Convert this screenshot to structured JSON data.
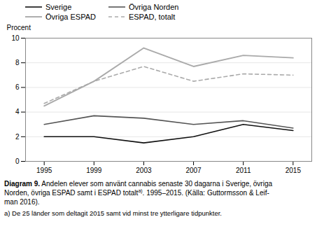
{
  "chart_data": {
    "type": "line",
    "x": [
      1995,
      1999,
      2003,
      2007,
      2011,
      2015
    ],
    "series": [
      {
        "name": "Övriga ESPAD",
        "color": "#aaaaaa",
        "line_style": "solid",
        "values": [
          4.5,
          6.5,
          9.2,
          7.7,
          8.6,
          8.4
        ]
      },
      {
        "name": "ESPAD, totalt",
        "color": "#aaaaaa",
        "line_style": "dashed",
        "values": [
          4.7,
          6.5,
          7.7,
          6.5,
          7.1,
          7.0
        ]
      },
      {
        "name": "Övriga Norden",
        "color": "#555555",
        "line_style": "solid",
        "values": [
          3.0,
          3.7,
          3.5,
          3.0,
          3.3,
          2.7
        ]
      },
      {
        "name": "Sverige",
        "color": "#111111",
        "line_style": "solid",
        "values": [
          2.0,
          2.0,
          1.5,
          2.0,
          3.0,
          2.5
        ]
      }
    ],
    "legend_order": [
      "Sverige",
      "Övriga Norden",
      "Övriga ESPAD",
      "ESPAD, totalt"
    ],
    "ylabel": "Procent",
    "xlim": [
      1993.5,
      2016.5
    ],
    "xticks": [
      1995,
      1999,
      2003,
      2007,
      2011,
      2015
    ],
    "ylim": [
      0,
      10
    ],
    "yticks": [
      0,
      2,
      4,
      6,
      8,
      10
    ],
    "grid": true,
    "legend": "top",
    "caption": [
      [
        "Diagram 9.",
        " Andelen elever som använt cannabis senaste 30 dagarna i Sverige, övriga"
      ],
      [
        "Norden, övriga ESPAD samt i ESPAD totalt",
        "a)",
        ". 1995–2015. (Källa: Guttormsson & Leif-"
      ],
      [
        "man 2016)."
      ]
    ],
    "footnote": "a) De 25 länder som deltagit 2015 samt vid minst tre ytterligare tidpunkter."
  }
}
